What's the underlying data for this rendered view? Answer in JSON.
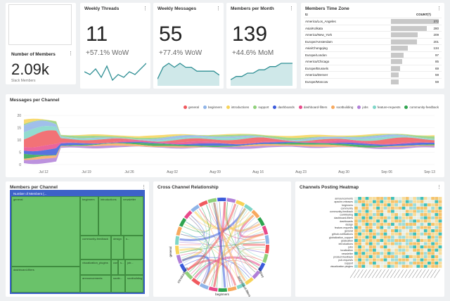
{
  "colors": {
    "accent": "#2f8f94",
    "chart_blue": "#3b5bdb",
    "treemap_green": "#6ac26a"
  },
  "members": {
    "title": "Number of Members",
    "value": "2.09k",
    "sub": "Slack Members"
  },
  "weekly_threads": {
    "title": "Weekly Threads",
    "value": "11",
    "delta": "+57.1% WoW",
    "trend": [
      6,
      5,
      7,
      4,
      8,
      3,
      5,
      4,
      6,
      5,
      7,
      9
    ]
  },
  "weekly_messages": {
    "title": "Weekly Messages",
    "value": "55",
    "delta": "+77.4% WoW",
    "trend": [
      3,
      6,
      7,
      6,
      7,
      6,
      6,
      5,
      5,
      5,
      5,
      4
    ]
  },
  "members_month": {
    "title": "Members per Month",
    "value": "139",
    "delta": "+44.6% MoM",
    "trend": [
      2,
      3,
      3,
      4,
      4,
      5,
      5,
      6,
      6,
      7,
      7,
      7
    ]
  },
  "timezone": {
    "title": "Members Time Zone",
    "col_tz": "tz",
    "col_count": "COUNT(*)",
    "rows": [
      {
        "tz": "America/Los_Angeles",
        "count": "372"
      },
      {
        "tz": "Asia/Kolkata",
        "count": "280"
      },
      {
        "tz": "America/New_York",
        "count": "209"
      },
      {
        "tz": "Europe/Amsterdam",
        "count": "201"
      },
      {
        "tz": "Asia/Chongqing",
        "count": "134"
      },
      {
        "tz": "Europe/London",
        "count": "97"
      },
      {
        "tz": "America/Chicago",
        "count": "85"
      },
      {
        "tz": "Europe/Brussels",
        "count": "69"
      },
      {
        "tz": "America/Denver",
        "count": "59"
      },
      {
        "tz": "Europe/Moscow",
        "count": "59"
      }
    ]
  },
  "messages_channel": {
    "title": "Messages per Channel",
    "legend": [
      "general",
      "beginners",
      "introductions",
      "support",
      "dashboards",
      "dashboard-filters",
      "sootbuilding",
      "jobs",
      "feature-requests",
      "community-feedback"
    ],
    "legend_colors": [
      "#f0595e",
      "#8fb4e8",
      "#f7d358",
      "#8fd07a",
      "#3b5bdb",
      "#e84a8a",
      "#f7a95e",
      "#b07fd8",
      "#7fd6c8",
      "#2fa44f"
    ],
    "y_ticks": [
      "20",
      "15",
      "10",
      "5",
      "0"
    ],
    "x_ticks": [
      "Jul 12",
      "Jul 19",
      "Jul 26",
      "Aug 02",
      "Aug 09",
      "Aug 16",
      "Aug 23",
      "Aug 30",
      "Sep 06",
      "Sep 13"
    ]
  },
  "members_per_channel": {
    "title": "Members per Channel",
    "header": "Number of Members (...",
    "tiles": [
      "general",
      "beginners",
      "introductions",
      "newsletter",
      "community-feedback",
      "design",
      "s...",
      "visualization_plugins",
      "community",
      "s...",
      "job...",
      "announcements",
      "sootb...",
      "sootbuilding",
      "dashboard-filters"
    ]
  },
  "cross_channel": {
    "title": "Cross Channel Relationship",
    "arc_labels": [
      "general",
      "introductions",
      "beginners",
      "dashboard-filters",
      "support"
    ]
  },
  "heatmap": {
    "title": "Channels Posting Heatmap",
    "rows": [
      "announcements",
      "apache-releases",
      "beginners",
      "community",
      "community-feedback",
      "contributing",
      "dashboard-filters",
      "dashboards",
      "design",
      "feature-requests",
      "general",
      "github-notifications",
      "globalization_support",
      "graduation",
      "introductions",
      "jobs",
      "localization",
      "newsletter",
      "product-feedback",
      "pull-requests",
      "support",
      "visualization-plugins"
    ]
  },
  "chart_data": [
    {
      "type": "line",
      "title": "Weekly Threads",
      "values": [
        6,
        5,
        7,
        4,
        8,
        3,
        5,
        4,
        6,
        5,
        7,
        9
      ]
    },
    {
      "type": "area",
      "title": "Weekly Messages",
      "values": [
        3,
        6,
        7,
        6,
        7,
        6,
        6,
        5,
        5,
        5,
        5,
        4
      ]
    },
    {
      "type": "area",
      "title": "Members per Month",
      "values": [
        2,
        3,
        3,
        4,
        4,
        5,
        5,
        6,
        6,
        7,
        7,
        7
      ]
    },
    {
      "type": "bar",
      "title": "Members Time Zone",
      "categories": [
        "America/Los_Angeles",
        "Asia/Kolkata",
        "America/New_York",
        "Europe/Amsterdam",
        "Asia/Chongqing",
        "Europe/London",
        "America/Chicago",
        "Europe/Brussels",
        "America/Denver",
        "Europe/Moscow"
      ],
      "values": [
        372,
        280,
        209,
        201,
        134,
        97,
        85,
        69,
        59,
        59
      ]
    }
  ]
}
